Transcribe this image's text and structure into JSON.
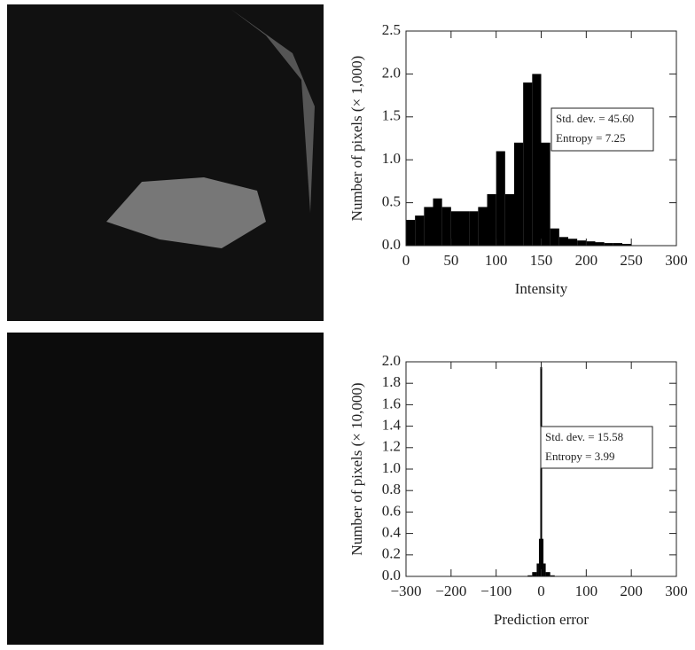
{
  "chart_data": [
    {
      "type": "histogram",
      "xlabel": "Intensity",
      "ylabel": "Number of pixels (× 1,000)",
      "annotations": [
        "Std. dev. = 45.60",
        "Entropy = 7.25"
      ],
      "bins": [
        0,
        10,
        20,
        30,
        40,
        50,
        60,
        70,
        80,
        90,
        100,
        110,
        120,
        130,
        140,
        150,
        160,
        170,
        180,
        190,
        200,
        210,
        220,
        230,
        240,
        250
      ],
      "counts": [
        0.3,
        0.35,
        0.45,
        0.55,
        0.45,
        0.4,
        0.4,
        0.4,
        0.45,
        0.6,
        1.1,
        0.6,
        1.2,
        1.9,
        2.0,
        1.2,
        0.2,
        0.1,
        0.08,
        0.06,
        0.05,
        0.04,
        0.03,
        0.03,
        0.02
      ],
      "color": "#000000",
      "xlim": [
        0,
        300
      ],
      "xticks": [
        0,
        50,
        100,
        150,
        200,
        250,
        300
      ],
      "ylim": [
        0,
        2.5
      ],
      "yticks": [
        {
          "value": 0,
          "label": "0.0"
        },
        {
          "value": 0.5,
          "label": "0.5"
        },
        {
          "value": 1,
          "label": "1.0"
        },
        {
          "value": 1.5,
          "label": "1.5"
        },
        {
          "value": 2,
          "label": "2.0"
        },
        {
          "value": 2.5,
          "label": "2.5"
        }
      ]
    },
    {
      "type": "histogram",
      "xlabel": "Prediction error",
      "ylabel": "Number of pixels (× 10,000)",
      "annotations": [
        "Std. dev. = 15.58",
        "Entropy = 3.99"
      ],
      "bins": [
        -30,
        -20,
        -10,
        -5,
        -2,
        0,
        2,
        5,
        10,
        20,
        30
      ],
      "counts": [
        0.01,
        0.04,
        0.12,
        0.35,
        1.95,
        1.95,
        0.35,
        0.12,
        0.04,
        0.01
      ],
      "color": "#000000",
      "xlim": [
        -300,
        300
      ],
      "xticks": [
        {
          "value": -300,
          "label": "−300"
        },
        {
          "value": -200,
          "label": "−200"
        },
        {
          "value": -100,
          "label": "−100"
        },
        0,
        100,
        200,
        300
      ],
      "ylim": [
        0,
        2.0
      ],
      "yticks": [
        {
          "value": 0,
          "label": "0.0"
        },
        {
          "value": 0.2,
          "label": "0.2"
        },
        {
          "value": 0.4,
          "label": "0.4"
        },
        {
          "value": 0.6,
          "label": "0.6"
        },
        {
          "value": 0.8,
          "label": "0.8"
        },
        {
          "value": 1,
          "label": "1.0"
        },
        {
          "value": 1.2,
          "label": "1.2"
        },
        {
          "value": 1.4,
          "label": "1.4"
        },
        {
          "value": 1.6,
          "label": "1.6"
        },
        {
          "value": 1.8,
          "label": "1.8"
        },
        {
          "value": 2,
          "label": "2.0"
        }
      ]
    }
  ]
}
